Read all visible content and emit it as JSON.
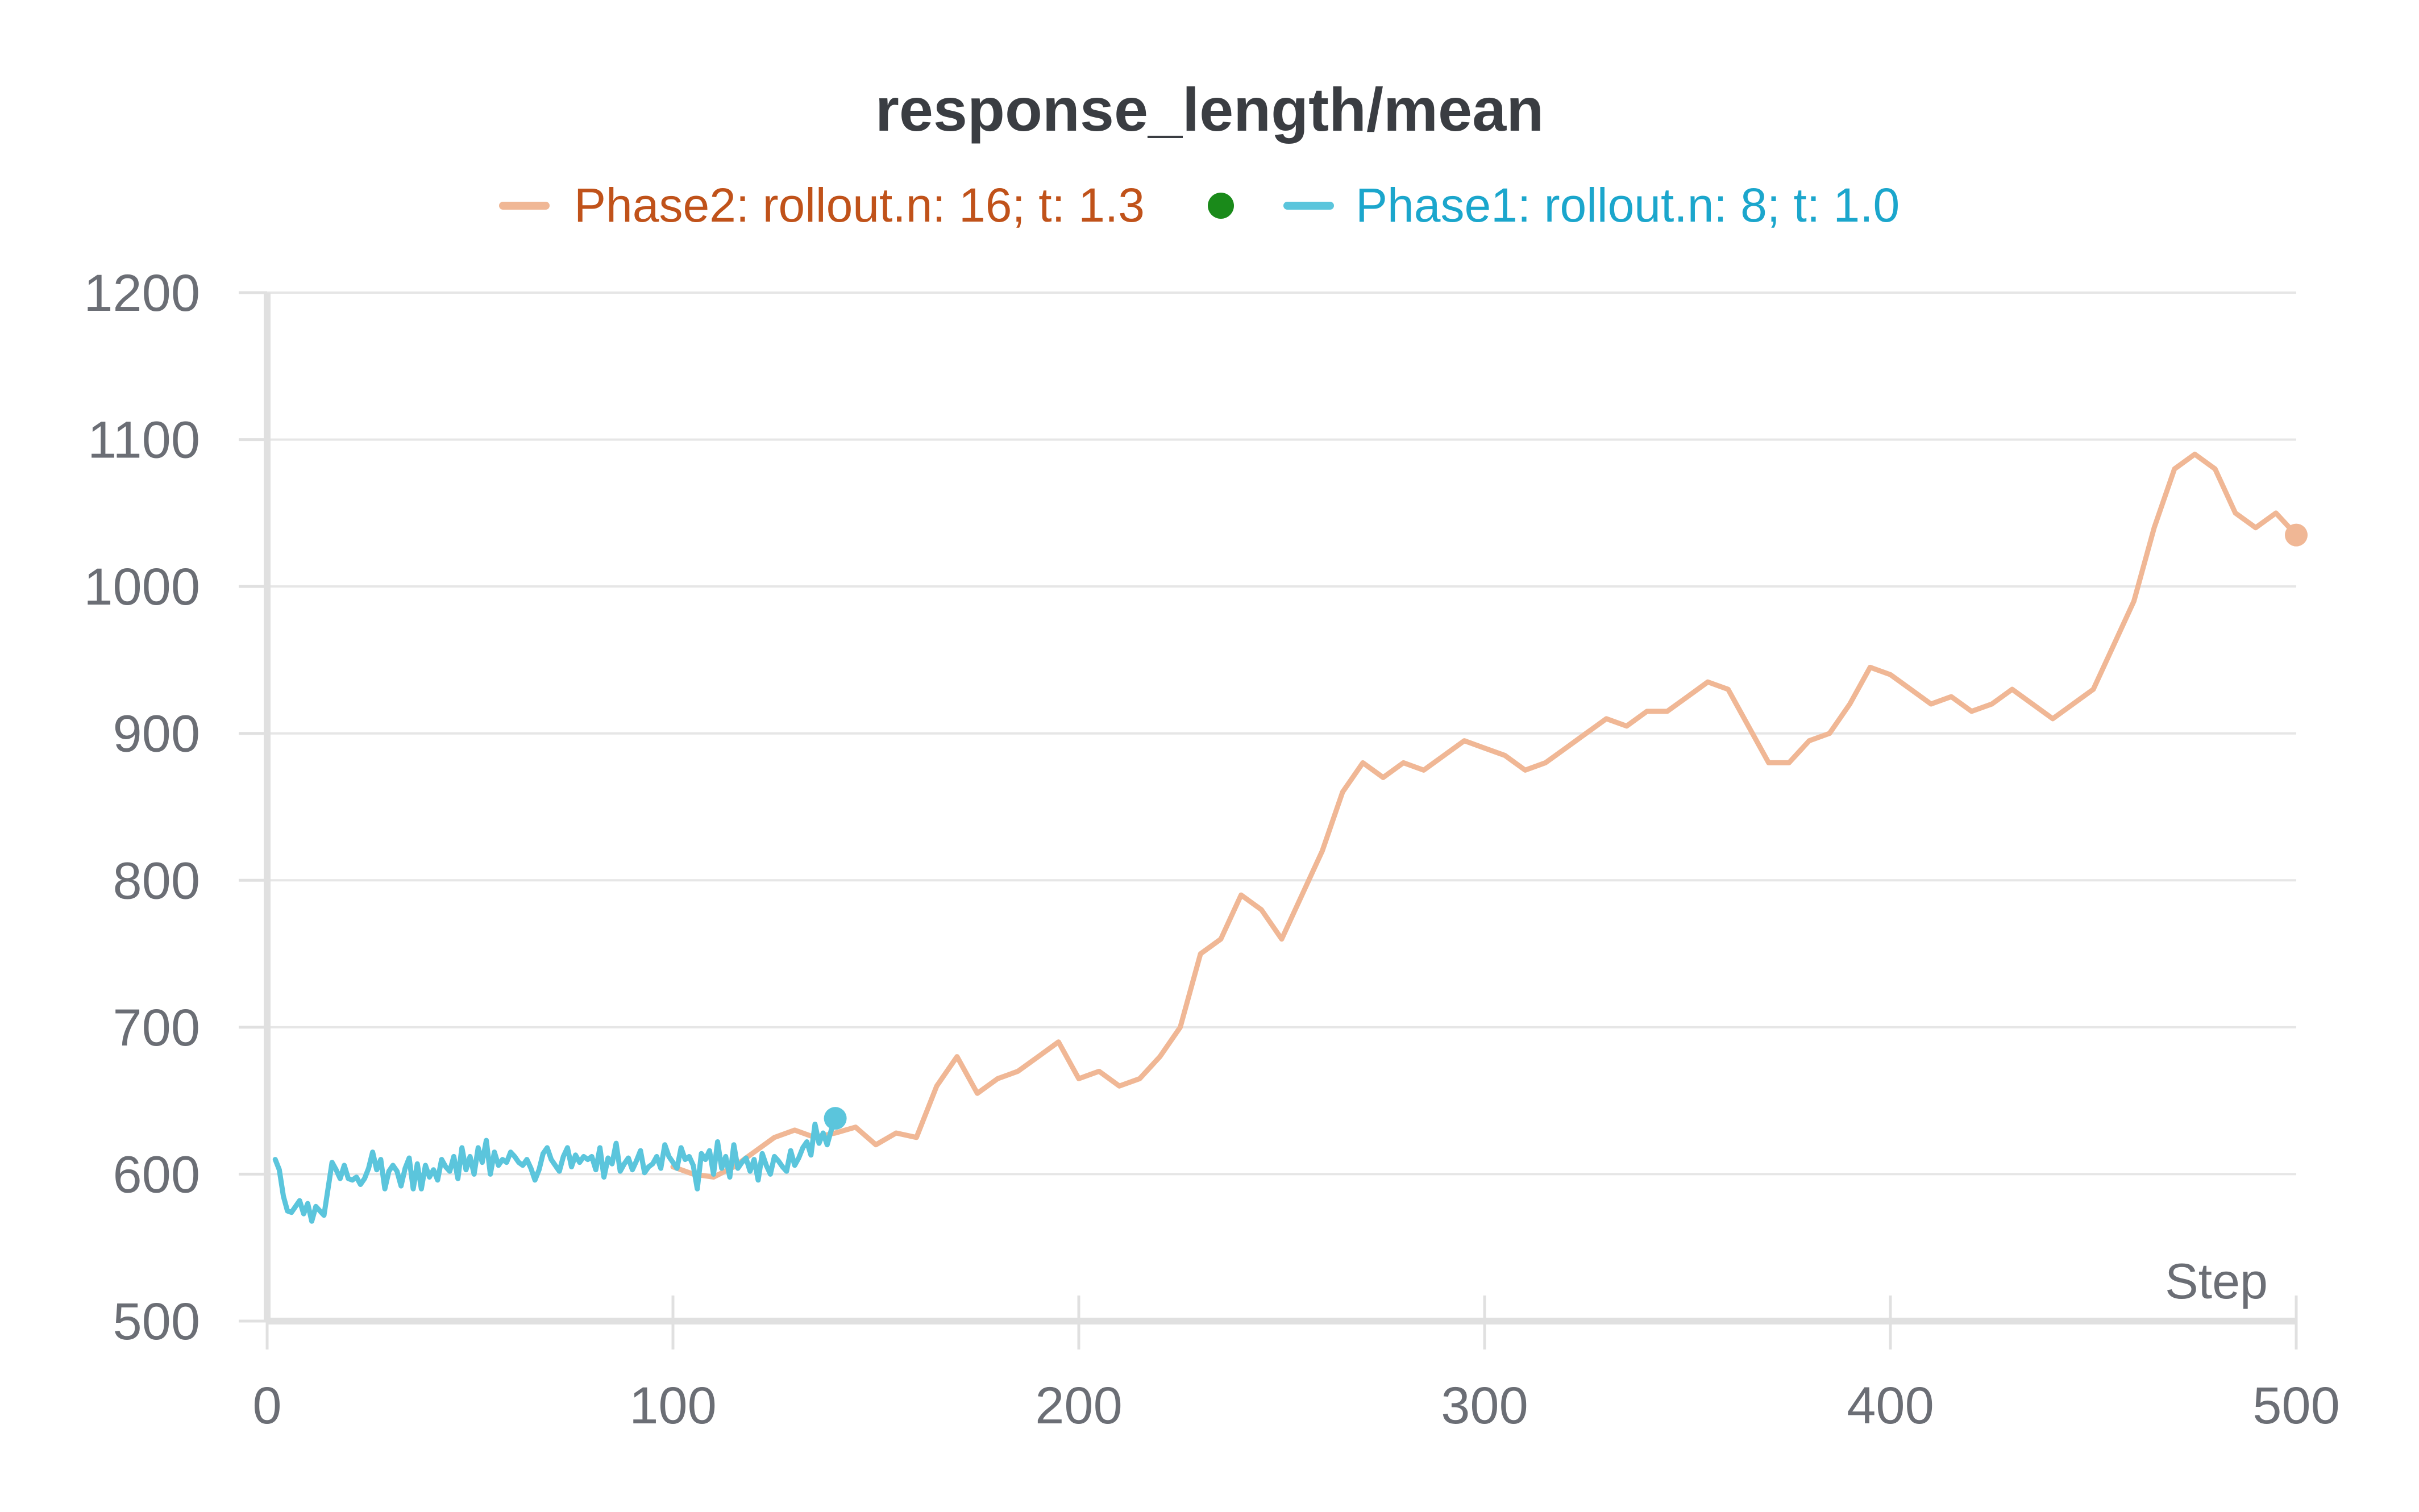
{
  "chart_data": {
    "type": "line",
    "title": "response_length/mean",
    "xlabel": "Step",
    "ylabel": "",
    "xlim": [
      0,
      500
    ],
    "ylim": [
      500,
      1200
    ],
    "x_ticks": [
      0,
      100,
      200,
      300,
      400,
      500
    ],
    "y_ticks": [
      500,
      600,
      700,
      800,
      900,
      1000,
      1100,
      1200
    ],
    "grid": true,
    "legend_position": "top-center",
    "legend_marker_color": "#1a8a1a",
    "series": [
      {
        "name": "Phase2: rollout.n: 16; t: 1.3",
        "color": "#f0b795",
        "label_color": "#c0521a",
        "x": [
          100,
          105,
          110,
          115,
          120,
          125,
          130,
          135,
          140,
          145,
          150,
          155,
          160,
          165,
          170,
          175,
          180,
          185,
          190,
          195,
          200,
          205,
          210,
          215,
          220,
          225,
          230,
          235,
          240,
          245,
          250,
          255,
          260,
          265,
          270,
          275,
          280,
          285,
          290,
          295,
          300,
          305,
          310,
          315,
          320,
          325,
          330,
          335,
          340,
          345,
          350,
          355,
          360,
          365,
          370,
          375,
          380,
          385,
          390,
          395,
          400,
          405,
          410,
          415,
          420,
          425,
          430,
          435,
          440,
          445,
          450,
          455,
          460,
          465,
          470,
          475,
          480,
          485,
          490,
          495,
          500
        ],
        "y": [
          605,
          600,
          598,
          605,
          615,
          625,
          630,
          625,
          628,
          632,
          620,
          628,
          625,
          660,
          680,
          655,
          665,
          670,
          680,
          690,
          665,
          670,
          660,
          665,
          680,
          700,
          750,
          760,
          790,
          780,
          760,
          790,
          820,
          860,
          880,
          870,
          880,
          875,
          885,
          895,
          890,
          885,
          875,
          880,
          890,
          900,
          910,
          905,
          915,
          915,
          925,
          935,
          930,
          905,
          880,
          880,
          895,
          900,
          920,
          945,
          940,
          930,
          920,
          925,
          915,
          920,
          930,
          920,
          910,
          920,
          930,
          960,
          990,
          1040,
          1080,
          1090,
          1080,
          1050,
          1040,
          1050,
          1035
        ],
        "end_marker": true
      },
      {
        "name": "Phase1: rollout.n: 8; t: 1.0",
        "color": "#5bc5dc",
        "label_color": "#1ba6cc",
        "x": [
          2,
          3,
          4,
          5,
          6,
          7,
          8,
          9,
          10,
          11,
          12,
          13,
          14,
          15,
          16,
          17,
          18,
          19,
          20,
          21,
          22,
          23,
          24,
          25,
          26,
          27,
          28,
          29,
          30,
          31,
          32,
          33,
          34,
          35,
          36,
          37,
          38,
          39,
          40,
          41,
          42,
          43,
          44,
          45,
          46,
          47,
          48,
          49,
          50,
          51,
          52,
          53,
          54,
          55,
          56,
          57,
          58,
          59,
          60,
          61,
          62,
          63,
          64,
          65,
          66,
          67,
          68,
          69,
          70,
          71,
          72,
          73,
          74,
          75,
          76,
          77,
          78,
          79,
          80,
          81,
          82,
          83,
          84,
          85,
          86,
          87,
          88,
          89,
          90,
          91,
          92,
          93,
          94,
          95,
          96,
          97,
          98,
          99,
          100,
          101,
          102,
          103,
          104,
          105,
          106,
          107,
          108,
          109,
          110,
          111,
          112,
          113,
          114,
          115,
          116,
          117,
          118,
          119,
          120,
          121,
          122,
          123,
          124,
          125,
          126,
          127,
          128,
          129,
          130,
          131,
          132,
          133,
          134,
          135,
          136,
          137,
          138,
          139,
          140
        ],
        "y": [
          610,
          603,
          585,
          575,
          574,
          578,
          582,
          573,
          580,
          568,
          578,
          575,
          572,
          590,
          608,
          603,
          597,
          606,
          597,
          596,
          598,
          593,
          597,
          604,
          615,
          603,
          610,
          590,
          602,
          606,
          602,
          592,
          604,
          611,
          590,
          607,
          590,
          606,
          598,
          603,
          596,
          610,
          605,
          602,
          612,
          597,
          618,
          603,
          612,
          600,
          618,
          608,
          623,
          600,
          615,
          606,
          610,
          608,
          615,
          612,
          608,
          606,
          610,
          604,
          596,
          603,
          614,
          618,
          610,
          606,
          602,
          612,
          618,
          605,
          613,
          608,
          612,
          610,
          612,
          603,
          618,
          598,
          611,
          607,
          621,
          602,
          607,
          611,
          603,
          609,
          616,
          601,
          605,
          607,
          612,
          604,
          620,
          612,
          608,
          604,
          618,
          610,
          612,
          606,
          590,
          614,
          610,
          616,
          600,
          622,
          604,
          612,
          598,
          620,
          604,
          608,
          611,
          602,
          610,
          596,
          614,
          606,
          600,
          612,
          609,
          605,
          602,
          616,
          606,
          611,
          618,
          622,
          613,
          634,
          621,
          628,
          620,
          630,
          638
        ],
        "end_marker": true
      }
    ]
  }
}
